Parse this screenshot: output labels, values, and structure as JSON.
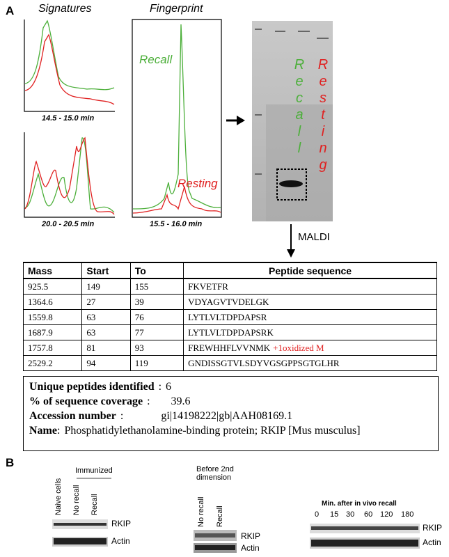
{
  "panel_a": {
    "label": "A",
    "signatures_title": "Signatures",
    "fingerprint_title": "Fingerprint",
    "signature_captions": [
      "14.5 - 15.0 min",
      "20.0 - 20.5 min"
    ],
    "fingerprint_caption": "15.5 - 16.0 min",
    "fingerprint_labels": [
      "Recall",
      "Resting"
    ],
    "gel_labels": [
      "Recall",
      "Resting"
    ],
    "arrow_label": "MALDI"
  },
  "table": {
    "header": [
      "Mass",
      "Start",
      "To",
      "Peptide sequence"
    ],
    "rows": [
      [
        "925.5",
        "149",
        "155",
        "FKVETFR"
      ],
      [
        "1364.6",
        "27",
        "39",
        "VDYAGVTVDELGK"
      ],
      [
        "1559.8",
        "63",
        "76",
        "LYTLVLTDPDAPSR"
      ],
      [
        "1687.9",
        "63",
        "77",
        "LYTLVLTDPDAPSRK"
      ],
      [
        "1757.8",
        "81",
        "93",
        "FREWHHFLVVNMK",
        "+1oxidized M"
      ],
      [
        "2529.2",
        "94",
        "119",
        "GNDISSGTVLSDYVGSGPPSGTGLHR"
      ]
    ]
  },
  "summary": [
    {
      "label": "Unique peptides identified",
      "separator": ":",
      "value": "6"
    },
    {
      "label": "% of sequence coverage",
      "separator": ":",
      "value": "39.6"
    },
    {
      "label": "Accession number",
      "separator": ":",
      "value": "gi|14198222|gb|AAH08169.1"
    },
    {
      "label": "Name",
      "separator": ":",
      "value": "Phosphatidylethanolamine-binding protein; RKIP [Mus musculus]"
    }
  ],
  "panel_b": {
    "label": "B",
    "groups": [
      {
        "header": [
          "Immunized"
        ],
        "lanes": [
          "Naive cells",
          "No recall",
          "Recall"
        ],
        "bands": [
          "RKIP",
          "Actin"
        ]
      },
      {
        "header": [
          "Before 2nd",
          "dimension"
        ],
        "lanes": [
          "No recall",
          "Recall"
        ],
        "bands": [
          "RKIP",
          "Actin"
        ]
      },
      {
        "header": [
          "Min. after in vivo recall"
        ],
        "lanes": [
          "0",
          "15",
          "30",
          "60",
          "120",
          "180"
        ],
        "bands": [
          "RKIP",
          "Actin"
        ]
      }
    ]
  }
}
